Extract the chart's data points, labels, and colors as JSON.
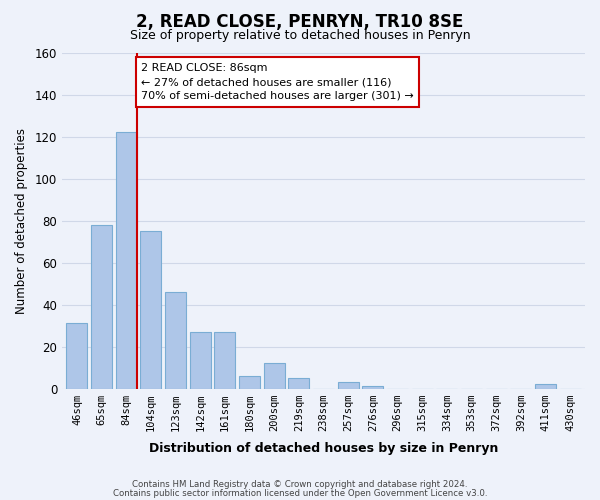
{
  "title": "2, READ CLOSE, PENRYN, TR10 8SE",
  "subtitle": "Size of property relative to detached houses in Penryn",
  "xlabel": "Distribution of detached houses by size in Penryn",
  "ylabel": "Number of detached properties",
  "categories": [
    "46sqm",
    "65sqm",
    "84sqm",
    "104sqm",
    "123sqm",
    "142sqm",
    "161sqm",
    "180sqm",
    "200sqm",
    "219sqm",
    "238sqm",
    "257sqm",
    "276sqm",
    "296sqm",
    "315sqm",
    "334sqm",
    "353sqm",
    "372sqm",
    "392sqm",
    "411sqm",
    "430sqm"
  ],
  "values": [
    31,
    78,
    122,
    75,
    46,
    27,
    27,
    6,
    12,
    5,
    0,
    3,
    1,
    0,
    0,
    0,
    0,
    0,
    0,
    2,
    0
  ],
  "bar_color": "#aec6e8",
  "bar_edge_color": "#7aadd4",
  "vline_color": "#cc0000",
  "vline_position": 2.425,
  "ylim": [
    0,
    160
  ],
  "yticks": [
    0,
    20,
    40,
    60,
    80,
    100,
    120,
    140,
    160
  ],
  "annotation_title": "2 READ CLOSE: 86sqm",
  "annotation_line1": "← 27% of detached houses are smaller (116)",
  "annotation_line2": "70% of semi-detached houses are larger (301) →",
  "annotation_box_color": "#ffffff",
  "annotation_box_edge": "#cc0000",
  "grid_color": "#d0d8e8",
  "background_color": "#eef2fa",
  "footer_line1": "Contains HM Land Registry data © Crown copyright and database right 2024.",
  "footer_line2": "Contains public sector information licensed under the Open Government Licence v3.0."
}
